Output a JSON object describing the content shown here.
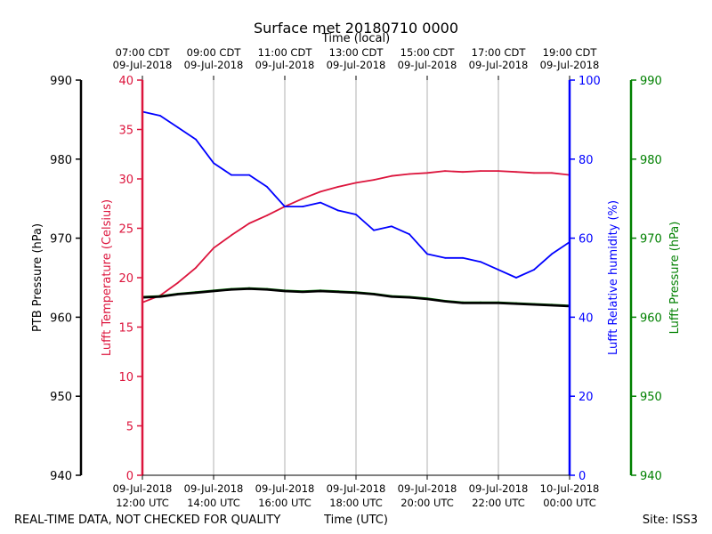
{
  "chart_data": {
    "type": "line",
    "title": "Surface met 20180710 0000",
    "top_axis_label": "Time (local)",
    "xlabel": "Time (UTC)",
    "footer_left": "REAL-TIME DATA, NOT CHECKED FOR QUALITY",
    "footer_right": "Site: ISS3",
    "x_ticks_utc": [
      [
        "09-Jul-2018",
        "12:00 UTC"
      ],
      [
        "09-Jul-2018",
        "14:00 UTC"
      ],
      [
        "09-Jul-2018",
        "16:00 UTC"
      ],
      [
        "09-Jul-2018",
        "18:00 UTC"
      ],
      [
        "09-Jul-2018",
        "20:00 UTC"
      ],
      [
        "09-Jul-2018",
        "22:00 UTC"
      ],
      [
        "10-Jul-2018",
        "00:00 UTC"
      ]
    ],
    "x_ticks_local": [
      [
        "07:00 CDT",
        "09-Jul-2018"
      ],
      [
        "09:00 CDT",
        "09-Jul-2018"
      ],
      [
        "11:00 CDT",
        "09-Jul-2018"
      ],
      [
        "13:00 CDT",
        "09-Jul-2018"
      ],
      [
        "15:00 CDT",
        "09-Jul-2018"
      ],
      [
        "17:00 CDT",
        "09-Jul-2018"
      ],
      [
        "19:00 CDT",
        "09-Jul-2018"
      ]
    ],
    "xlim_hours_utc": [
      12,
      24
    ],
    "grid": "vertical",
    "axes": {
      "ptb_pressure": {
        "label": "PTB Pressure (hPa)",
        "position": "far-left",
        "color": "#000000",
        "ylim": [
          940,
          990
        ],
        "ticks": [
          940,
          950,
          960,
          970,
          980,
          990
        ]
      },
      "temperature": {
        "label": "Lufft Temperature (Celsius)",
        "position": "left",
        "color": "#dc143c",
        "ylim": [
          0,
          40
        ],
        "ticks": [
          0,
          5,
          10,
          15,
          20,
          25,
          30,
          35,
          40
        ]
      },
      "humidity": {
        "label": "Lufft Relative humidity (%)",
        "position": "right",
        "color": "#0000ff",
        "ylim": [
          0,
          100
        ],
        "ticks": [
          0,
          20,
          40,
          60,
          80,
          100
        ]
      },
      "lufft_pressure": {
        "label": "Lufft Pressure (hPa)",
        "position": "far-right",
        "color": "#008000",
        "ylim": [
          940,
          990
        ],
        "ticks": [
          940,
          950,
          960,
          970,
          980,
          990
        ]
      }
    },
    "series": [
      {
        "name": "Lufft Temperature (Celsius)",
        "axis": "temperature",
        "color": "#dc143c",
        "x": [
          12.0,
          12.5,
          13.0,
          13.5,
          14.0,
          14.5,
          15.0,
          15.5,
          16.0,
          16.5,
          17.0,
          17.5,
          18.0,
          18.5,
          19.0,
          19.5,
          20.0,
          20.5,
          21.0,
          21.5,
          22.0,
          22.5,
          23.0,
          23.5,
          24.0
        ],
        "y": [
          17.5,
          18.2,
          19.5,
          21.0,
          23.0,
          24.3,
          25.5,
          26.3,
          27.2,
          28.0,
          28.7,
          29.2,
          29.6,
          29.9,
          30.3,
          30.5,
          30.6,
          30.8,
          30.7,
          30.8,
          30.8,
          30.7,
          30.6,
          30.6,
          30.4
        ]
      },
      {
        "name": "Lufft Relative humidity (%)",
        "axis": "humidity",
        "color": "#0000ff",
        "x": [
          12.0,
          12.5,
          13.0,
          13.5,
          14.0,
          14.5,
          15.0,
          15.5,
          16.0,
          16.5,
          17.0,
          17.5,
          18.0,
          18.5,
          19.0,
          19.5,
          20.0,
          20.5,
          21.0,
          21.5,
          22.0,
          22.5,
          23.0,
          23.5,
          24.0
        ],
        "y": [
          92,
          91,
          88,
          85,
          79,
          76,
          76,
          73,
          68,
          68,
          69,
          67,
          66,
          62,
          63,
          61,
          56,
          55,
          55,
          54,
          52,
          50,
          52,
          56,
          59
        ]
      },
      {
        "name": "PTB Pressure (hPa)",
        "axis": "ptb_pressure",
        "color": "#000000",
        "x": [
          12.0,
          12.5,
          13.0,
          13.5,
          14.0,
          14.5,
          15.0,
          15.5,
          16.0,
          16.5,
          17.0,
          17.5,
          18.0,
          18.5,
          19.0,
          19.5,
          20.0,
          20.5,
          21.0,
          21.5,
          22.0,
          22.5,
          23.0,
          23.5,
          24.0
        ],
        "y": [
          962.5,
          962.6,
          962.9,
          963.1,
          963.3,
          963.5,
          963.6,
          963.5,
          963.3,
          963.2,
          963.3,
          963.2,
          963.1,
          962.9,
          962.6,
          962.5,
          962.3,
          962.0,
          961.8,
          961.8,
          961.8,
          961.7,
          961.6,
          961.5,
          961.4
        ]
      },
      {
        "name": "Lufft Pressure (hPa)",
        "axis": "lufft_pressure",
        "color": "#008000",
        "x": [
          12.0,
          12.5,
          13.0,
          13.5,
          14.0,
          14.5,
          15.0,
          15.5,
          16.0,
          16.5,
          17.0,
          17.5,
          18.0,
          18.5,
          19.0,
          19.5,
          20.0,
          20.5,
          21.0,
          21.5,
          22.0,
          22.5,
          23.0,
          23.5,
          24.0
        ],
        "y": [
          962.6,
          962.7,
          963.0,
          963.2,
          963.4,
          963.6,
          963.7,
          963.6,
          963.4,
          963.3,
          963.4,
          963.3,
          963.2,
          963.0,
          962.7,
          962.6,
          962.4,
          962.1,
          961.9,
          961.9,
          961.9,
          961.8,
          961.7,
          961.6,
          961.5
        ]
      }
    ]
  }
}
